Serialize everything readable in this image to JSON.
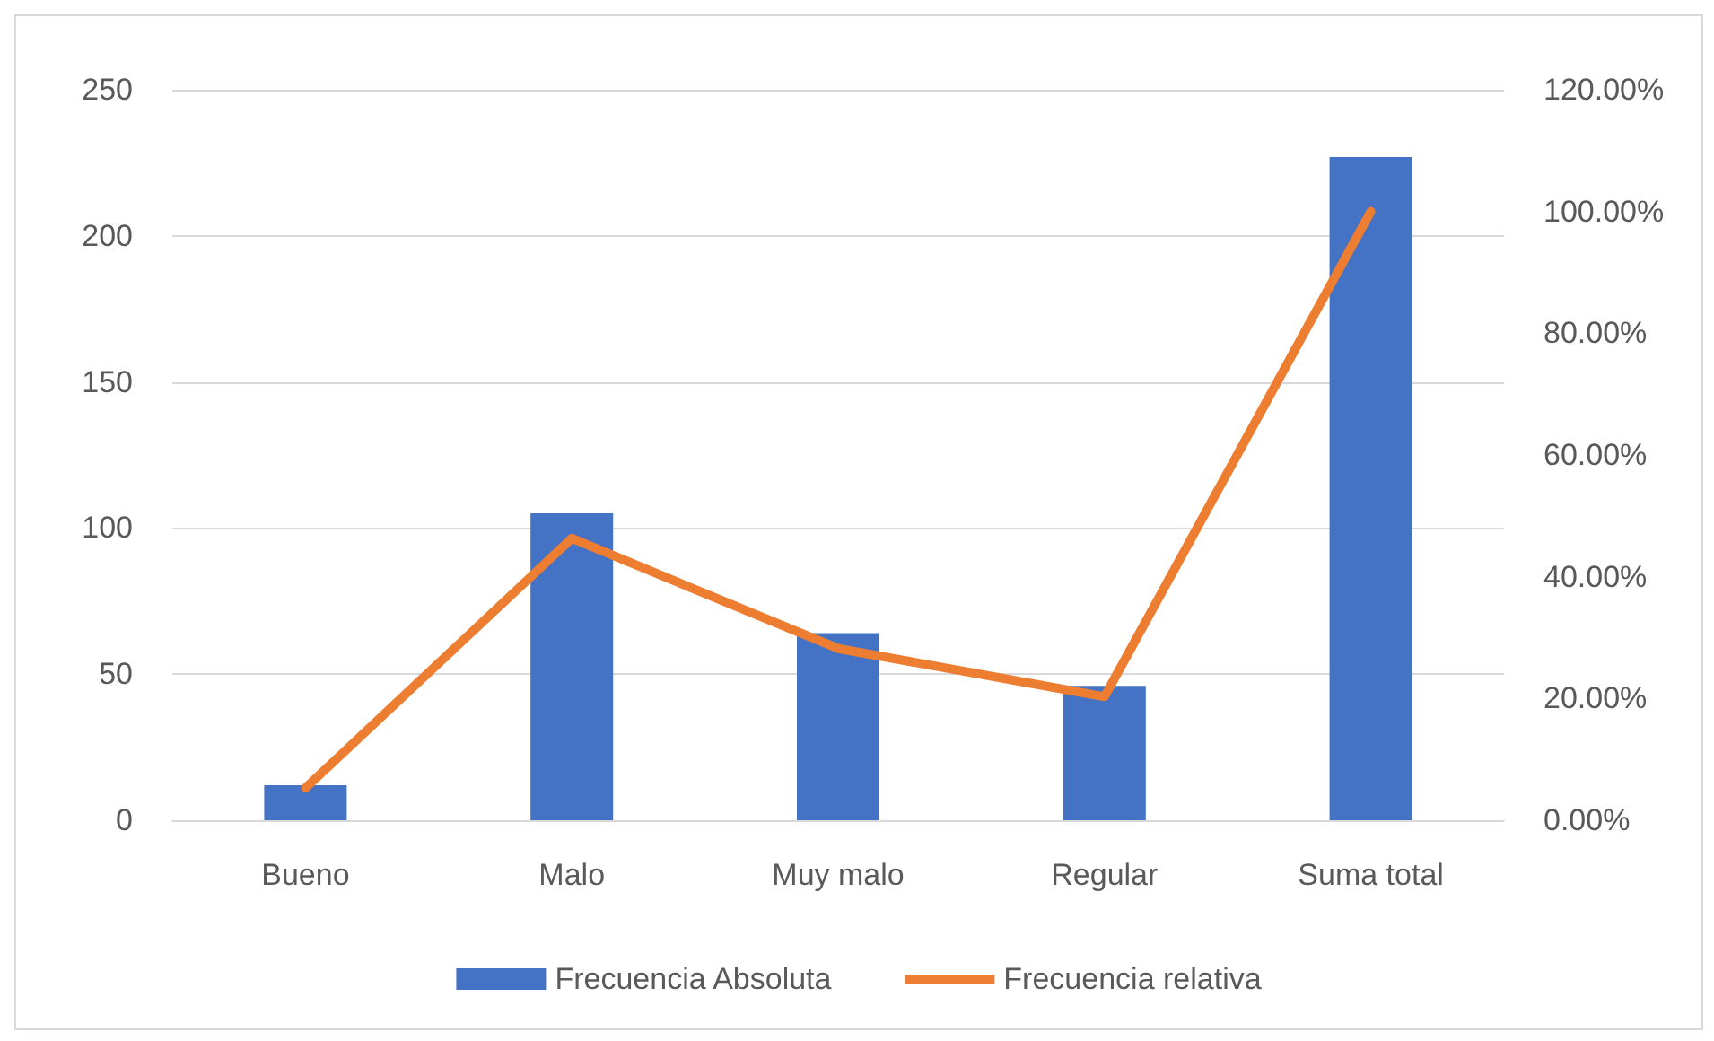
{
  "chart_data": {
    "type": "bar",
    "categories": [
      "Bueno",
      "Malo",
      "Muy malo",
      "Regular",
      "Suma total"
    ],
    "series": [
      {
        "name": "Frecuencia Absoluta",
        "color": "#4472c4",
        "values": [
          12,
          105,
          64,
          46,
          227
        ]
      },
      {
        "name": "Frecuencia relativa",
        "type": "line",
        "axis": "y2",
        "color": "#ed7d31",
        "values": [
          5.3,
          46.3,
          28.2,
          20.3,
          100
        ]
      }
    ],
    "ylim": [
      0,
      250
    ],
    "yticks": [
      0,
      50,
      100,
      150,
      200,
      250
    ],
    "y2lim": [
      0,
      120
    ],
    "y2ticks": [
      {
        "value": 0,
        "label": "0.00%"
      },
      {
        "value": 20,
        "label": "20.00%"
      },
      {
        "value": 40,
        "label": "40.00%"
      },
      {
        "value": 60,
        "label": "60.00%"
      },
      {
        "value": 80,
        "label": "80.00%"
      },
      {
        "value": 100,
        "label": "100.00%"
      },
      {
        "value": 120,
        "label": "120.00%"
      }
    ],
    "grid": "y",
    "legend": "bottom",
    "marker": "none",
    "line_style": "solid"
  }
}
